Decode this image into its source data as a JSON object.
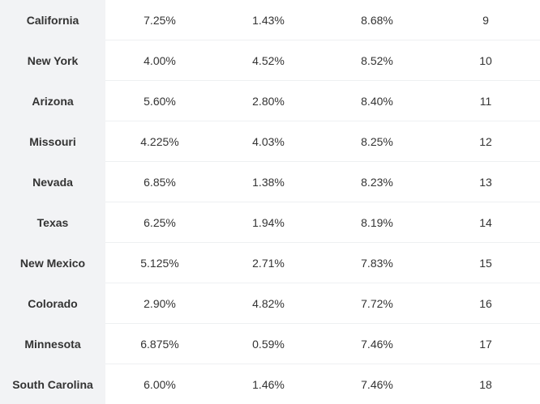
{
  "table": {
    "rows": [
      {
        "state": "California",
        "state_rate": "7.25%",
        "avg_local_rate": "1.43%",
        "combined_rate": "8.68%",
        "rank": "9"
      },
      {
        "state": "New York",
        "state_rate": "4.00%",
        "avg_local_rate": "4.52%",
        "combined_rate": "8.52%",
        "rank": "10"
      },
      {
        "state": "Arizona",
        "state_rate": "5.60%",
        "avg_local_rate": "2.80%",
        "combined_rate": "8.40%",
        "rank": "11"
      },
      {
        "state": "Missouri",
        "state_rate": "4.225%",
        "avg_local_rate": "4.03%",
        "combined_rate": "8.25%",
        "rank": "12"
      },
      {
        "state": "Nevada",
        "state_rate": "6.85%",
        "avg_local_rate": "1.38%",
        "combined_rate": "8.23%",
        "rank": "13"
      },
      {
        "state": "Texas",
        "state_rate": "6.25%",
        "avg_local_rate": "1.94%",
        "combined_rate": "8.19%",
        "rank": "14"
      },
      {
        "state": "New Mexico",
        "state_rate": "5.125%",
        "avg_local_rate": "2.71%",
        "combined_rate": "7.83%",
        "rank": "15"
      },
      {
        "state": "Colorado",
        "state_rate": "2.90%",
        "avg_local_rate": "4.82%",
        "combined_rate": "7.72%",
        "rank": "16"
      },
      {
        "state": "Minnesota",
        "state_rate": "6.875%",
        "avg_local_rate": "0.59%",
        "combined_rate": "7.46%",
        "rank": "17"
      },
      {
        "state": "South Carolina",
        "state_rate": "6.00%",
        "avg_local_rate": "1.46%",
        "combined_rate": "7.46%",
        "rank": "18"
      }
    ]
  },
  "colors": {
    "state_column_bg": "#f2f3f5",
    "row_divider": "#eef0f2",
    "text": "#333333"
  }
}
